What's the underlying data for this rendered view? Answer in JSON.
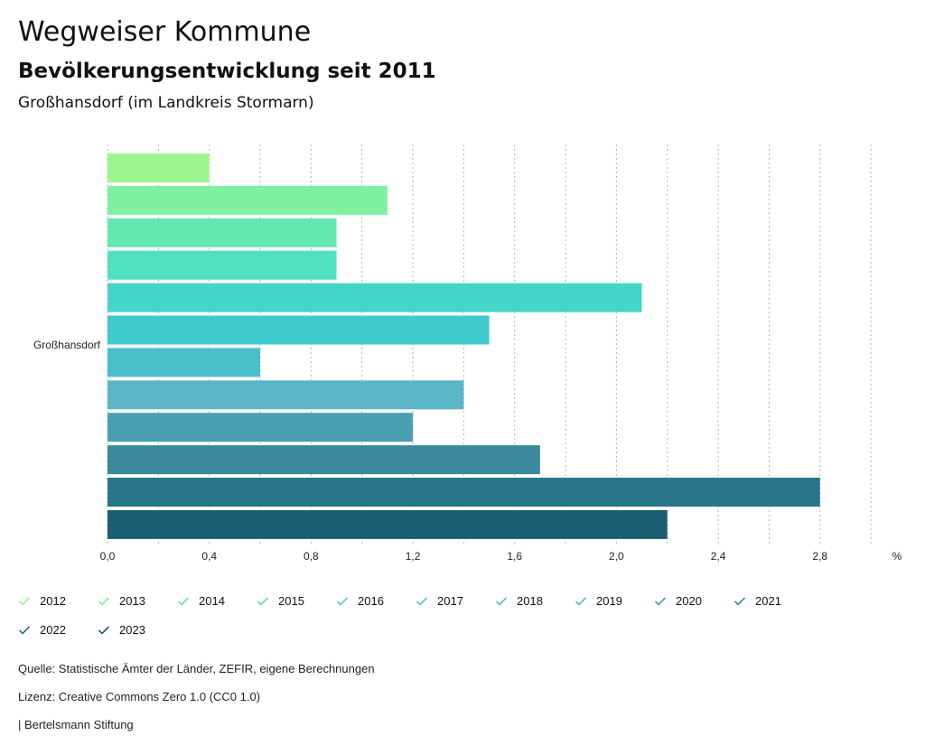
{
  "header": {
    "title": "Wegweiser Kommune",
    "subtitle": "Bevölkerungsentwicklung seit 2011",
    "region": "Großhansdorf (im Landkreis Stormarn)"
  },
  "chart_data": {
    "type": "bar",
    "orientation": "horizontal",
    "categories": [
      "Großhansdorf"
    ],
    "series": [
      {
        "name": "2012",
        "values": [
          0.4
        ],
        "color": "#9ef58f"
      },
      {
        "name": "2013",
        "values": [
          1.1
        ],
        "color": "#7ef0a0"
      },
      {
        "name": "2014",
        "values": [
          0.9
        ],
        "color": "#62e8b0"
      },
      {
        "name": "2015",
        "values": [
          0.9
        ],
        "color": "#4fe0bf"
      },
      {
        "name": "2016",
        "values": [
          2.1
        ],
        "color": "#42d6c9"
      },
      {
        "name": "2017",
        "values": [
          1.5
        ],
        "color": "#3ecbce"
      },
      {
        "name": "2018",
        "values": [
          0.6
        ],
        "color": "#4abfcb"
      },
      {
        "name": "2019",
        "values": [
          1.4
        ],
        "color": "#5ab5c6"
      },
      {
        "name": "2020",
        "values": [
          1.2
        ],
        "color": "#4a9eb2"
      },
      {
        "name": "2021",
        "values": [
          1.7
        ],
        "color": "#3b8a9c"
      },
      {
        "name": "2022",
        "values": [
          2.8
        ],
        "color": "#27768a"
      },
      {
        "name": "2023",
        "values": [
          2.2
        ],
        "color": "#1a5e70"
      }
    ],
    "xlim": [
      0,
      3.0
    ],
    "xticks": [
      "0,0",
      "0,4",
      "0,8",
      "1,2",
      "1,6",
      "2,0",
      "2,4",
      "2,8"
    ],
    "xtick_values": [
      0.0,
      0.4,
      0.8,
      1.2,
      1.6,
      2.0,
      2.4,
      2.8
    ],
    "unit": "%",
    "grid": true,
    "legend_position": "bottom"
  },
  "footer": {
    "source": "Quelle: Statistische Ämter der Länder, ZEFIR, eigene Berechnungen",
    "license": "Lizenz: Creative Commons Zero 1.0 (CC0 1.0)",
    "publisher": "| Bertelsmann Stiftung"
  }
}
